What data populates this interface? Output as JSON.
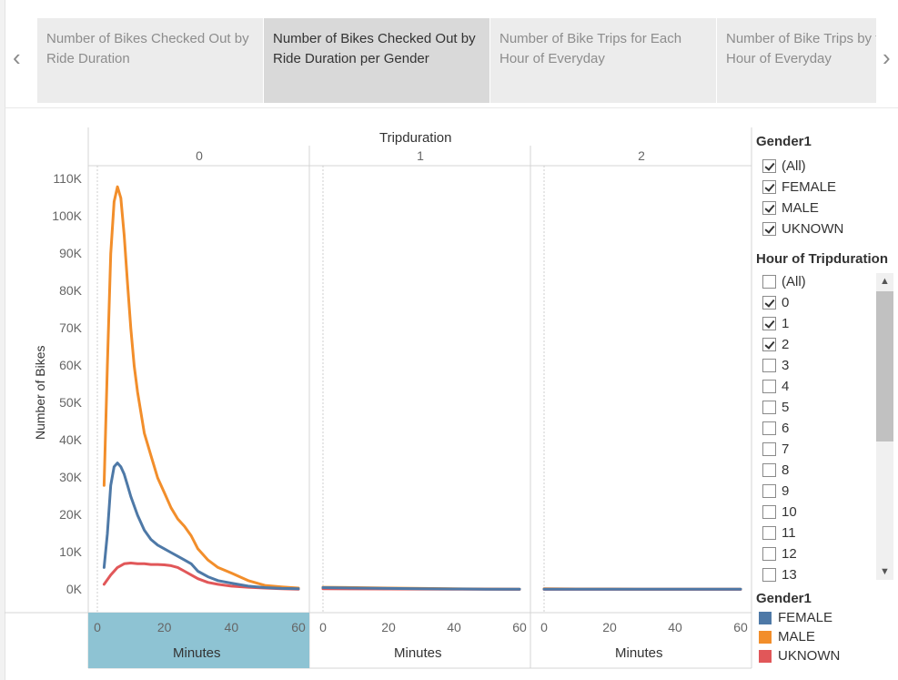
{
  "story": {
    "tabs": [
      {
        "label": "Number of Bikes Checked Out by Ride Duration",
        "active": false
      },
      {
        "label": "Number of Bikes Checked Out by Ride Duration per Gender",
        "active": true
      },
      {
        "label": "Number of Bike Trips for Each Hour of Everyday",
        "active": false
      },
      {
        "label": "Number of Bike Trips by for Every Hour of Everyday",
        "active": false
      }
    ],
    "prev_icon": "chevron-left-icon",
    "next_icon": "chevron-right-icon"
  },
  "chart_data": {
    "type": "line",
    "column_title": "Tripduration",
    "panels": [
      "0",
      "1",
      "2"
    ],
    "ylabel": "Number of Bikes",
    "xlabel": "Minutes",
    "ylim": [
      0,
      110000
    ],
    "yticks": [
      "0K",
      "10K",
      "20K",
      "30K",
      "40K",
      "50K",
      "60K",
      "70K",
      "80K",
      "90K",
      "100K",
      "110K"
    ],
    "xlim": [
      0,
      60
    ],
    "xticks": [
      0,
      20,
      40,
      60
    ],
    "grid": false,
    "series": [
      {
        "name": "FEMALE",
        "color": "#4e79a7",
        "panel0": [
          [
            2,
            6000
          ],
          [
            3,
            15000
          ],
          [
            4,
            28000
          ],
          [
            5,
            33000
          ],
          [
            6,
            34000
          ],
          [
            7,
            33000
          ],
          [
            8,
            31000
          ],
          [
            9,
            28000
          ],
          [
            10,
            25000
          ],
          [
            12,
            20000
          ],
          [
            14,
            16000
          ],
          [
            16,
            13500
          ],
          [
            18,
            12000
          ],
          [
            20,
            11000
          ],
          [
            22,
            10000
          ],
          [
            24,
            9000
          ],
          [
            26,
            8000
          ],
          [
            28,
            7000
          ],
          [
            30,
            5000
          ],
          [
            33,
            3500
          ],
          [
            36,
            2500
          ],
          [
            40,
            1800
          ],
          [
            45,
            1000
          ],
          [
            50,
            600
          ],
          [
            55,
            400
          ],
          [
            60,
            300
          ]
        ],
        "panel1": [
          [
            0,
            600
          ],
          [
            10,
            500
          ],
          [
            20,
            400
          ],
          [
            30,
            300
          ],
          [
            40,
            250
          ],
          [
            50,
            200
          ],
          [
            60,
            200
          ]
        ],
        "panel2": [
          [
            0,
            200
          ],
          [
            10,
            200
          ],
          [
            20,
            200
          ],
          [
            30,
            200
          ],
          [
            40,
            200
          ],
          [
            50,
            200
          ],
          [
            60,
            200
          ]
        ]
      },
      {
        "name": "MALE",
        "color": "#f28e2b",
        "panel0": [
          [
            2,
            28000
          ],
          [
            3,
            60000
          ],
          [
            4,
            90000
          ],
          [
            5,
            104000
          ],
          [
            6,
            108000
          ],
          [
            7,
            105000
          ],
          [
            8,
            95000
          ],
          [
            9,
            82000
          ],
          [
            10,
            70000
          ],
          [
            11,
            60000
          ],
          [
            12,
            53000
          ],
          [
            14,
            42000
          ],
          [
            16,
            36000
          ],
          [
            18,
            30000
          ],
          [
            20,
            26000
          ],
          [
            22,
            22000
          ],
          [
            24,
            19000
          ],
          [
            26,
            17000
          ],
          [
            28,
            14500
          ],
          [
            30,
            11000
          ],
          [
            33,
            8000
          ],
          [
            36,
            6000
          ],
          [
            40,
            4500
          ],
          [
            45,
            2500
          ],
          [
            50,
            1200
          ],
          [
            55,
            800
          ],
          [
            60,
            500
          ]
        ],
        "panel1": [
          [
            0,
            700
          ],
          [
            10,
            600
          ],
          [
            20,
            500
          ],
          [
            30,
            400
          ],
          [
            40,
            300
          ],
          [
            50,
            250
          ],
          [
            60,
            200
          ]
        ],
        "panel2": [
          [
            0,
            300
          ],
          [
            10,
            250
          ],
          [
            20,
            250
          ],
          [
            30,
            200
          ],
          [
            40,
            200
          ],
          [
            50,
            200
          ],
          [
            60,
            200
          ]
        ]
      },
      {
        "name": "UKNOWN",
        "color": "#e15759",
        "panel0": [
          [
            2,
            1500
          ],
          [
            4,
            4000
          ],
          [
            6,
            6000
          ],
          [
            8,
            7000
          ],
          [
            10,
            7200
          ],
          [
            12,
            7000
          ],
          [
            14,
            7000
          ],
          [
            16,
            6800
          ],
          [
            18,
            6800
          ],
          [
            20,
            6700
          ],
          [
            22,
            6500
          ],
          [
            24,
            6000
          ],
          [
            26,
            5000
          ],
          [
            28,
            4000
          ],
          [
            30,
            3000
          ],
          [
            33,
            2000
          ],
          [
            36,
            1500
          ],
          [
            40,
            1000
          ],
          [
            45,
            700
          ],
          [
            50,
            500
          ],
          [
            55,
            300
          ],
          [
            60,
            200
          ]
        ],
        "panel1": [
          [
            0,
            300
          ],
          [
            20,
            250
          ],
          [
            40,
            200
          ],
          [
            60,
            150
          ]
        ],
        "panel2": [
          [
            0,
            150
          ],
          [
            30,
            150
          ],
          [
            60,
            150
          ]
        ]
      }
    ]
  },
  "filters": {
    "gender": {
      "title": "Gender1",
      "items": [
        {
          "label": "(All)",
          "checked": true
        },
        {
          "label": "FEMALE",
          "checked": true
        },
        {
          "label": "MALE",
          "checked": true
        },
        {
          "label": "UKNOWN",
          "checked": true
        }
      ]
    },
    "hour": {
      "title": "Hour of Tripduration",
      "items": [
        {
          "label": "(All)",
          "checked": false
        },
        {
          "label": "0",
          "checked": true
        },
        {
          "label": "1",
          "checked": true
        },
        {
          "label": "2",
          "checked": true
        },
        {
          "label": "3",
          "checked": false
        },
        {
          "label": "4",
          "checked": false
        },
        {
          "label": "5",
          "checked": false
        },
        {
          "label": "6",
          "checked": false
        },
        {
          "label": "7",
          "checked": false
        },
        {
          "label": "8",
          "checked": false
        },
        {
          "label": "9",
          "checked": false
        },
        {
          "label": "10",
          "checked": false
        },
        {
          "label": "11",
          "checked": false
        },
        {
          "label": "12",
          "checked": false
        },
        {
          "label": "13",
          "checked": false
        }
      ]
    }
  },
  "legend": {
    "title": "Gender1",
    "items": [
      {
        "label": "FEMALE",
        "color": "#4e79a7"
      },
      {
        "label": "MALE",
        "color": "#f28e2b"
      },
      {
        "label": "UKNOWN",
        "color": "#e15759"
      }
    ]
  }
}
